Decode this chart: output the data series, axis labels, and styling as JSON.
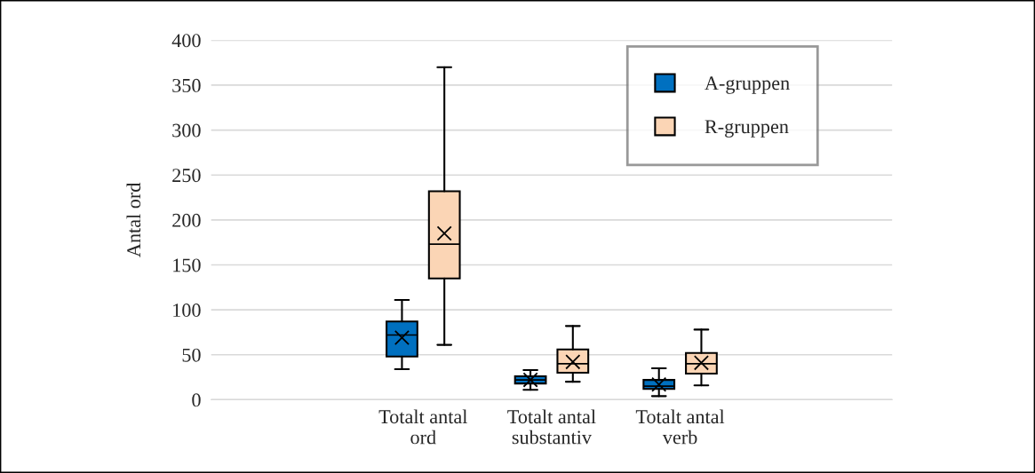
{
  "chart_data": {
    "type": "box",
    "ylabel": "Antal ord",
    "categories": [
      "Totalt antal ord",
      "Totalt antal substantiv",
      "Totalt antal verb"
    ],
    "series": [
      {
        "name": "A-gruppen",
        "color": "#0070c0",
        "boxes": [
          {
            "low": 34,
            "q1": 48,
            "median": 72,
            "q3": 87,
            "high": 111,
            "mean": 69
          },
          {
            "low": 11,
            "q1": 18,
            "median": 22,
            "q3": 26,
            "high": 33,
            "mean": 22
          },
          {
            "low": 4,
            "q1": 12,
            "median": 15,
            "q3": 22,
            "high": 35,
            "mean": 17
          }
        ]
      },
      {
        "name": "R-gruppen",
        "color": "#fbd5b5",
        "boxes": [
          {
            "low": 61,
            "q1": 135,
            "median": 173,
            "q3": 232,
            "high": 370,
            "mean": 185
          },
          {
            "low": 20,
            "q1": 30,
            "median": 40,
            "q3": 56,
            "high": 82,
            "mean": 42
          },
          {
            "low": 16,
            "q1": 29,
            "median": 40,
            "q3": 52,
            "high": 78,
            "mean": 41
          }
        ]
      }
    ],
    "ylim": [
      0,
      400
    ],
    "yticks": [
      0,
      50,
      100,
      150,
      200,
      250,
      300,
      350,
      400
    ],
    "grid": "y",
    "legend": "top right",
    "marker": "cross"
  }
}
